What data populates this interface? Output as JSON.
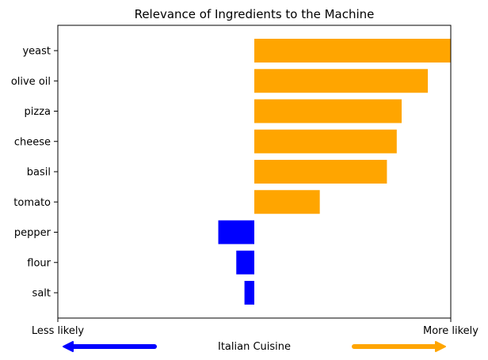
{
  "chart_data": {
    "type": "bar",
    "orientation": "horizontal",
    "title": "Relevance of Ingredients to the Machine",
    "categories": [
      "yeast",
      "olive oil",
      "pizza",
      "cheese",
      "basil",
      "tomato",
      "pepper",
      "flour",
      "salt"
    ],
    "values": [
      0.6,
      0.53,
      0.45,
      0.435,
      0.405,
      0.2,
      -0.11,
      -0.055,
      -0.03
    ],
    "xlim": [
      -0.6,
      0.6
    ],
    "grid": false,
    "colors": {
      "positive": "#ffa500",
      "negative": "#0000ff"
    },
    "x_annotations": {
      "left": "Less likely",
      "right": "More likely",
      "center": "Italian Cuisine"
    },
    "arrows": [
      {
        "direction": "left",
        "color": "#0000ff"
      },
      {
        "direction": "right",
        "color": "#ffa500"
      }
    ]
  }
}
